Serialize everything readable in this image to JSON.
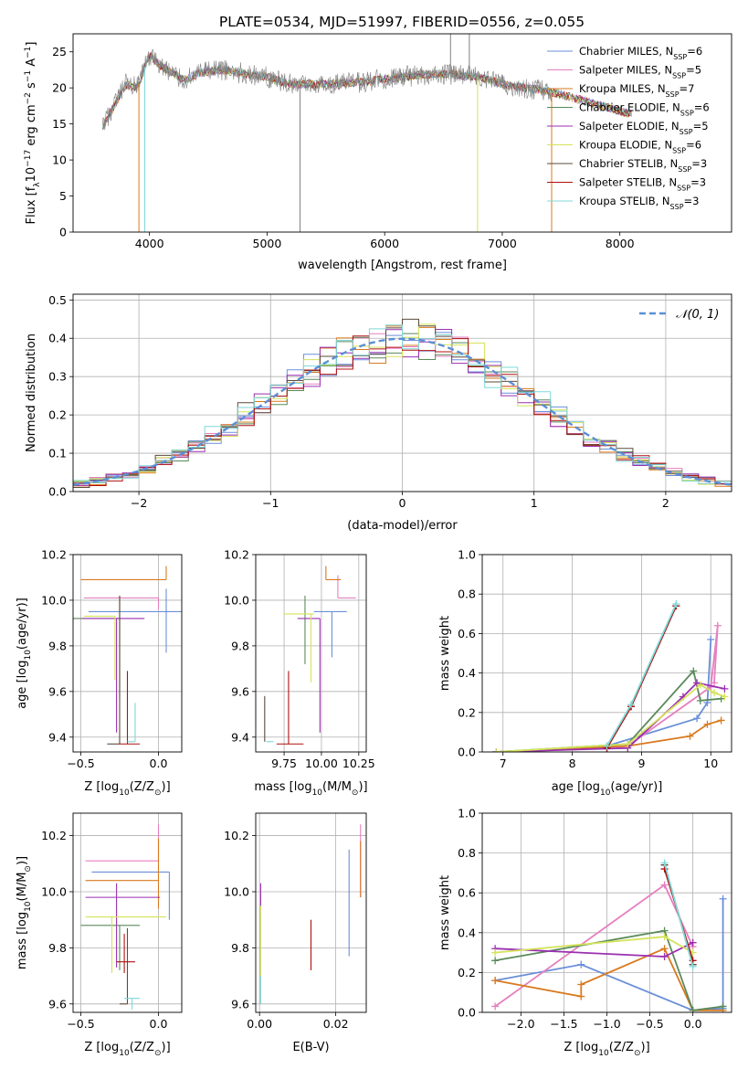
{
  "figure": {
    "title": "PLATE=0534, MJD=51997, FIBERID=0556, z=0.055"
  },
  "legend_entries": [
    {
      "prefix": "Chabrier MILES, N",
      "sub": "SSP",
      "suffix": "=6",
      "color": "#6a8fd9"
    },
    {
      "prefix": "Salpeter MILES, N",
      "sub": "SSP",
      "suffix": "=5",
      "color": "#e67fbf"
    },
    {
      "prefix": "Kroupa MILES, N",
      "sub": "SSP",
      "suffix": "=7",
      "color": "#d97a1f"
    },
    {
      "prefix": "Chabrier ELODIE, N",
      "sub": "SSP",
      "suffix": "=6",
      "color": "#5a8a5a"
    },
    {
      "prefix": "Salpeter ELODIE, N",
      "sub": "SSP",
      "suffix": "=5",
      "color": "#9b2fb0"
    },
    {
      "prefix": "Kroupa ELODIE, N",
      "sub": "SSP",
      "suffix": "=6",
      "color": "#d4e35a"
    },
    {
      "prefix": "Chabrier STELIB, N",
      "sub": "SSP",
      "suffix": "=3",
      "color": "#5b4a3a"
    },
    {
      "prefix": "Salpeter STELIB, N",
      "sub": "SSP",
      "suffix": "=3",
      "color": "#b01010"
    },
    {
      "prefix": "Kroupa STELIB, N",
      "sub": "SSP",
      "suffix": "=3",
      "color": "#7fd8d8"
    }
  ],
  "chart_data": [
    {
      "type": "line",
      "xlabel": "wavelength [Angstrom, rest frame]",
      "ylabel_main": "Flux [f",
      "ylabel_sub": "λ",
      "ylabel_rest": "10",
      "ylabel_sup1": "−17",
      "ylabel_rest2": " erg cm",
      "ylabel_sup2": "−2",
      "ylabel_rest3": " s",
      "ylabel_sup3": "−1",
      "ylabel_rest4": " A",
      "ylabel_sup4": "−1",
      "ylabel_end": "]",
      "xlim": [
        3350,
        8950
      ],
      "ylim": [
        0,
        27.5
      ],
      "xticks": [
        4000,
        5000,
        6000,
        7000,
        8000
      ],
      "yticks": [
        0,
        5,
        10,
        15,
        20,
        25
      ],
      "observed_color": "#808080",
      "spectrum_anchors": [
        [
          3600,
          14.5
        ],
        [
          3700,
          17.5
        ],
        [
          3800,
          20.5
        ],
        [
          3900,
          20.0
        ],
        [
          3950,
          22.5
        ],
        [
          4000,
          24.5
        ],
        [
          4100,
          23.0
        ],
        [
          4200,
          22.0
        ],
        [
          4300,
          21.0
        ],
        [
          4400,
          22.0
        ],
        [
          4600,
          22.5
        ],
        [
          5000,
          21.5
        ],
        [
          5200,
          20.5
        ],
        [
          5500,
          20.5
        ],
        [
          5800,
          20.8
        ],
        [
          6000,
          21.2
        ],
        [
          6300,
          21.8
        ],
        [
          6500,
          22.0
        ],
        [
          6800,
          21.5
        ],
        [
          7000,
          20.5
        ],
        [
          7200,
          20.0
        ],
        [
          7400,
          19.5
        ]
      ],
      "model_extent_x": [
        3600,
        8100
      ],
      "spikes": [
        {
          "x": 3910,
          "color": "#d97a1f",
          "y": 0
        },
        {
          "x": 3960,
          "color": "#7fd8d8",
          "y": 0
        },
        {
          "x": 5280,
          "color": "#808080",
          "y": 0
        },
        {
          "x": 6790,
          "color": "#d4e35a",
          "y": 0
        },
        {
          "x": 7420,
          "color": "#d97a1f",
          "y": 0
        },
        {
          "x": 6560,
          "color": "#808080",
          "y": 27.5
        },
        {
          "x": 6720,
          "color": "#808080",
          "y": 27.5
        }
      ]
    },
    {
      "type": "histogram",
      "xlabel": "(data-model)/error",
      "ylabel": "Normed distribution",
      "xlim": [
        -2.5,
        2.5
      ],
      "ylim": [
        0,
        0.515
      ],
      "xticks": [
        -2,
        -1,
        0,
        1,
        2
      ],
      "yticks": [
        0.0,
        0.1,
        0.2,
        0.3,
        0.4,
        0.5
      ],
      "bins": 40,
      "normal_label": "𝒩(0, 1)",
      "normal_color": "#5b8fd6",
      "seeds": [
        3,
        7,
        11,
        17,
        23,
        29,
        31,
        37,
        41
      ]
    },
    {
      "type": "errorbar",
      "xlabel_main": "Z [log",
      "xlabel_sub": "10",
      "xlabel_rest": "(Z/Z",
      "xlabel_sub2": "⊙",
      "xlabel_end": ")]",
      "ylabel_main": "age  [log",
      "ylabel_sub": "10",
      "ylabel_rest": "(age/yr)]",
      "xlim": [
        -0.55,
        0.15
      ],
      "ylim": [
        9.335,
        10.2
      ],
      "xticks": [
        -0.5,
        0.0
      ],
      "yticks": [
        9.4,
        9.6,
        9.8,
        10.0,
        10.2
      ],
      "points": [
        {
          "x": 0.05,
          "xerr": [
            0.5,
            0.15
          ],
          "y": 9.95,
          "yerr": [
            0.18,
            0.1
          ],
          "color": "#6a8fd9"
        },
        {
          "x": 0.0,
          "xerr": [
            0.48,
            0.0
          ],
          "y": 10.01,
          "yerr": [
            0.05,
            0.0
          ],
          "color": "#e67fbf"
        },
        {
          "x": 0.05,
          "xerr": [
            0.55,
            0.0
          ],
          "y": 10.09,
          "yerr": [
            0.0,
            0.06
          ],
          "color": "#d97a1f"
        },
        {
          "x": -0.25,
          "xerr": [
            0.3,
            0.0
          ],
          "y": 9.92,
          "yerr": [
            0.35,
            0.1
          ],
          "color": "#5a8a5a"
        },
        {
          "x": -0.27,
          "xerr": [
            0.22,
            0.18
          ],
          "y": 9.92,
          "yerr": [
            0.5,
            0.0
          ],
          "color": "#9b2fb0"
        },
        {
          "x": -0.28,
          "xerr": [
            0.2,
            0.0
          ],
          "y": 9.93,
          "yerr": [
            0.28,
            0.0
          ],
          "color": "#d4e35a"
        },
        {
          "x": -0.25,
          "xerr": [
            0.08,
            0.0
          ],
          "y": 9.37,
          "yerr": [
            0.0,
            0.65
          ],
          "color": "#5b4a3a"
        },
        {
          "x": -0.2,
          "xerr": [
            0.05,
            0.08
          ],
          "y": 9.37,
          "yerr": [
            0.0,
            0.32
          ],
          "color": "#b01010"
        },
        {
          "x": -0.15,
          "xerr": [
            0.05,
            0.0
          ],
          "y": 9.38,
          "yerr": [
            0.0,
            0.17
          ],
          "color": "#7fd8d8"
        }
      ]
    },
    {
      "type": "errorbar",
      "xlabel_main": "mass [log",
      "xlabel_sub": "10",
      "xlabel_rest": "(M/M",
      "xlabel_sub2": "⊙",
      "xlabel_end": ")]",
      "xlim": [
        9.56,
        10.3
      ],
      "ylim": [
        9.335,
        10.2
      ],
      "xticks": [
        9.75,
        10.0,
        10.25
      ],
      "yticks": [
        9.4,
        9.6,
        9.8,
        10.0,
        10.2
      ],
      "points": [
        {
          "x": 10.07,
          "xerr": [
            0.12,
            0.1
          ],
          "y": 9.95,
          "yerr": [
            0.2,
            0.0
          ],
          "color": "#6a8fd9"
        },
        {
          "x": 10.11,
          "xerr": [
            0.0,
            0.12
          ],
          "y": 10.01,
          "yerr": [
            0.0,
            0.1
          ],
          "color": "#e67fbf"
        },
        {
          "x": 10.03,
          "xerr": [
            0.0,
            0.1
          ],
          "y": 10.09,
          "yerr": [
            0.0,
            0.06
          ],
          "color": "#d97a1f"
        },
        {
          "x": 9.89,
          "xerr": [
            0.0,
            0.0
          ],
          "y": 9.92,
          "yerr": [
            0.2,
            0.1
          ],
          "color": "#5a8a5a"
        },
        {
          "x": 9.99,
          "xerr": [
            0.15,
            0.0
          ],
          "y": 9.92,
          "yerr": [
            0.5,
            0.0
          ],
          "color": "#9b2fb0"
        },
        {
          "x": 9.93,
          "xerr": [
            0.18,
            0.02
          ],
          "y": 9.94,
          "yerr": [
            0.3,
            0.0
          ],
          "color": "#d4e35a"
        },
        {
          "x": 9.62,
          "xerr": [
            0.0,
            0.0
          ],
          "y": 9.38,
          "yerr": [
            0.0,
            0.2
          ],
          "color": "#5b4a3a"
        },
        {
          "x": 9.78,
          "xerr": [
            0.08,
            0.1
          ],
          "y": 9.37,
          "yerr": [
            0.0,
            0.32
          ],
          "color": "#b01010"
        },
        {
          "x": 9.63,
          "xerr": [
            0.0,
            0.05
          ],
          "y": 9.38,
          "yerr": [
            0.0,
            0.0
          ],
          "color": "#7fd8d8"
        }
      ]
    },
    {
      "type": "line",
      "xlabel_main": "age  [log",
      "xlabel_sub": "10",
      "xlabel_rest": "(age/yr)]",
      "ylabel": "mass weight",
      "xlim": [
        6.7,
        10.3
      ],
      "ylim": [
        0,
        1.0
      ],
      "xticks": [
        7,
        8,
        9,
        10
      ],
      "yticks": [
        0.0,
        0.2,
        0.4,
        0.6,
        0.8,
        1.0
      ],
      "series": [
        {
          "color": "#6a8fd9",
          "x": [
            6.9,
            8.5,
            9.8,
            9.95,
            10.0
          ],
          "y": [
            0.0,
            0.03,
            0.17,
            0.25,
            0.57
          ]
        },
        {
          "color": "#e67fbf",
          "x": [
            6.9,
            8.8,
            10.0,
            10.1,
            10.05
          ],
          "y": [
            0.0,
            0.03,
            0.33,
            0.64,
            0.35
          ]
        },
        {
          "color": "#d97a1f",
          "x": [
            6.9,
            8.8,
            9.7,
            9.95,
            10.15
          ],
          "y": [
            0.0,
            0.03,
            0.08,
            0.14,
            0.16
          ]
        },
        {
          "color": "#5a8a5a",
          "x": [
            6.9,
            8.8,
            9.75,
            9.85,
            10.15
          ],
          "y": [
            0.0,
            0.04,
            0.41,
            0.26,
            0.27
          ]
        },
        {
          "color": "#9b2fb0",
          "x": [
            6.9,
            8.8,
            9.6,
            9.8,
            10.2
          ],
          "y": [
            0.0,
            0.02,
            0.28,
            0.35,
            0.32
          ]
        },
        {
          "color": "#d4e35a",
          "x": [
            6.9,
            8.8,
            9.85,
            10.05,
            10.2
          ],
          "y": [
            0.0,
            0.04,
            0.34,
            0.3,
            0.28
          ]
        },
        {
          "color": "#5b4a3a",
          "x": [
            8.5,
            8.85,
            9.5
          ],
          "y": [
            0.02,
            0.23,
            0.74
          ]
        },
        {
          "color": "#b01010",
          "x": [
            8.5,
            8.85,
            9.5
          ],
          "y": [
            0.02,
            0.23,
            0.74
          ]
        },
        {
          "color": "#7fd8d8",
          "x": [
            8.5,
            8.85,
            9.5
          ],
          "y": [
            0.03,
            0.24,
            0.75
          ]
        }
      ]
    },
    {
      "type": "errorbar",
      "xlabel_main": "Z [log",
      "xlabel_sub": "10",
      "xlabel_rest": "(Z/Z",
      "xlabel_sub2": "⊙",
      "xlabel_end": ")]",
      "ylabel_main": "mass [log",
      "ylabel_sub": "10",
      "ylabel_rest": "(M/M",
      "ylabel_sub2": "⊙",
      "ylabel_end": ")]",
      "xlim": [
        -0.55,
        0.15
      ],
      "ylim": [
        9.57,
        10.28
      ],
      "xticks": [
        -0.5,
        0.0
      ],
      "yticks": [
        9.6,
        9.8,
        10.0,
        10.2
      ],
      "points": [
        {
          "x": 0.07,
          "xerr": [
            0.5,
            0.0
          ],
          "y": 10.07,
          "yerr": [
            0.17,
            0.0
          ],
          "color": "#6a8fd9"
        },
        {
          "x": 0.0,
          "xerr": [
            0.47,
            0.0
          ],
          "y": 10.11,
          "yerr": [
            0.0,
            0.13
          ],
          "color": "#e67fbf"
        },
        {
          "x": 0.0,
          "xerr": [
            0.47,
            0.0
          ],
          "y": 10.04,
          "yerr": [
            0.1,
            0.15
          ],
          "color": "#d97a1f"
        },
        {
          "x": -0.25,
          "xerr": [
            0.25,
            0.13
          ],
          "y": 9.88,
          "yerr": [
            0.16,
            0.0
          ],
          "color": "#5a8a5a"
        },
        {
          "x": -0.27,
          "xerr": [
            0.2,
            0.28
          ],
          "y": 9.98,
          "yerr": [
            0.25,
            0.05
          ],
          "color": "#9b2fb0"
        },
        {
          "x": -0.3,
          "xerr": [
            0.17,
            0.35
          ],
          "y": 9.91,
          "yerr": [
            0.2,
            0.0
          ],
          "color": "#d4e35a"
        },
        {
          "x": -0.2,
          "xerr": [
            0.05,
            0.0
          ],
          "y": 9.6,
          "yerr": [
            0.0,
            0.27
          ],
          "color": "#5b4a3a"
        },
        {
          "x": -0.22,
          "xerr": [
            0.05,
            0.07
          ],
          "y": 9.75,
          "yerr": [
            0.04,
            0.1
          ],
          "color": "#b01010"
        },
        {
          "x": -0.17,
          "xerr": [
            0.05,
            0.05
          ],
          "y": 9.62,
          "yerr": [
            0.04,
            0.0
          ],
          "color": "#7fd8d8"
        }
      ]
    },
    {
      "type": "errorbar",
      "xlabel": "E(B-V)",
      "xlim": [
        -0.001,
        0.028
      ],
      "ylim": [
        9.57,
        10.28
      ],
      "xticks": [
        0.0,
        0.02
      ],
      "yticks": [
        9.6,
        9.8,
        10.0,
        10.2
      ],
      "points": [
        {
          "x": 0.0235,
          "xerr": [
            0,
            0
          ],
          "y": 9.97,
          "yerr": [
            0.2,
            0.18
          ],
          "color": "#6a8fd9"
        },
        {
          "x": 0.0265,
          "xerr": [
            0,
            0
          ],
          "y": 10.11,
          "yerr": [
            0.13,
            0.13
          ],
          "color": "#e67fbf"
        },
        {
          "x": 0.0265,
          "xerr": [
            0,
            0
          ],
          "y": 10.09,
          "yerr": [
            0.11,
            0.09
          ],
          "color": "#d97a1f"
        },
        {
          "x": 0.0003,
          "xerr": [
            0,
            0
          ],
          "y": 9.85,
          "yerr": [
            0.25,
            0.18
          ],
          "color": "#9b2fb0"
        },
        {
          "x": 0.0003,
          "xerr": [
            0,
            0
          ],
          "y": 9.85,
          "yerr": [
            0.25,
            0.1
          ],
          "color": "#d4e35a"
        },
        {
          "x": 0.0135,
          "xerr": [
            0,
            0
          ],
          "y": 9.8,
          "yerr": [
            0.08,
            0.1
          ],
          "color": "#b01010"
        },
        {
          "x": 0.0003,
          "xerr": [
            0,
            0
          ],
          "y": 9.65,
          "yerr": [
            0.05,
            0.05
          ],
          "color": "#7fd8d8"
        }
      ]
    },
    {
      "type": "line",
      "xlabel_main": "Z [log",
      "xlabel_sub": "10",
      "xlabel_rest": "(Z/Z",
      "xlabel_sub2": "⊙",
      "xlabel_end": ")]",
      "ylabel": "mass weight",
      "xlim": [
        -2.45,
        0.45
      ],
      "ylim": [
        0,
        1.0
      ],
      "xticks": [
        -2.0,
        -1.5,
        -1.0,
        -0.5,
        0.0
      ],
      "yticks": [
        0.0,
        0.2,
        0.4,
        0.6,
        0.8,
        1.0
      ],
      "series": [
        {
          "color": "#6a8fd9",
          "x": [
            -2.3,
            -1.3,
            0.0,
            0.35,
            0.35
          ],
          "y": [
            0.16,
            0.24,
            0.01,
            0.02,
            0.57
          ]
        },
        {
          "color": "#e67fbf",
          "x": [
            -2.3,
            -0.33,
            0.0
          ],
          "y": [
            0.03,
            0.64,
            0.33
          ]
        },
        {
          "color": "#d97a1f",
          "x": [
            -2.3,
            -1.3,
            -1.3,
            -0.33,
            0.0,
            0.35
          ],
          "y": [
            0.16,
            0.08,
            0.14,
            0.32,
            0.01,
            0.01
          ]
        },
        {
          "color": "#5a8a5a",
          "x": [
            -2.3,
            -0.33,
            0.0,
            0.35
          ],
          "y": [
            0.26,
            0.41,
            0.01,
            0.03
          ]
        },
        {
          "color": "#9b2fb0",
          "x": [
            -2.3,
            -0.33,
            0.0
          ],
          "y": [
            0.32,
            0.28,
            0.35
          ]
        },
        {
          "color": "#d4e35a",
          "x": [
            -2.3,
            -0.33,
            0.0
          ],
          "y": [
            0.3,
            0.38,
            0.3
          ]
        },
        {
          "color": "#5b4a3a",
          "x": [
            -0.33,
            0.0
          ],
          "y": [
            0.74,
            0.24
          ]
        },
        {
          "color": "#b01010",
          "x": [
            -0.33,
            0.0
          ],
          "y": [
            0.72,
            0.26
          ]
        },
        {
          "color": "#7fd8d8",
          "x": [
            -0.33,
            0.0
          ],
          "y": [
            0.75,
            0.23
          ]
        }
      ]
    }
  ]
}
